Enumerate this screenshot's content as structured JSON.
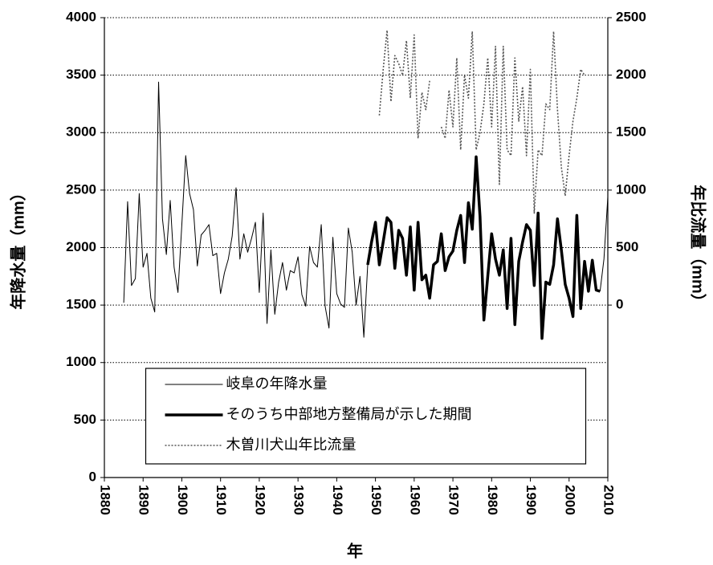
{
  "chart_data": {
    "type": "line",
    "xlabel": "年",
    "ylabel": "年降水量（mm）",
    "y2label": "年比流量（mm）",
    "xlim": [
      1880,
      2010
    ],
    "xticks": [
      1880,
      1890,
      1900,
      1910,
      1920,
      1930,
      1940,
      1950,
      1960,
      1970,
      1980,
      1990,
      2000,
      2010
    ],
    "ylim": [
      0,
      4000
    ],
    "yticks": [
      0,
      500,
      1000,
      1500,
      2000,
      2500,
      3000,
      3500,
      4000
    ],
    "y2lim": [
      -1500,
      2500
    ],
    "y2ticks": [
      0,
      500,
      1000,
      1500,
      2000,
      2500
    ],
    "grid": true,
    "legend": "lower center",
    "series": [
      {
        "name": "岐阜の年降水量",
        "color": "#000000",
        "line_width": 1,
        "dashed": false,
        "x": [
          1885,
          1886,
          1887,
          1888,
          1889,
          1890,
          1891,
          1892,
          1893,
          1894,
          1895,
          1896,
          1897,
          1898,
          1899,
          1900,
          1901,
          1902,
          1903,
          1904,
          1905,
          1906,
          1907,
          1908,
          1909,
          1910,
          1911,
          1912,
          1913,
          1914,
          1915,
          1916,
          1917,
          1918,
          1919,
          1920,
          1921,
          1922,
          1923,
          1924,
          1925,
          1926,
          1927,
          1928,
          1929,
          1930,
          1931,
          1932,
          1933,
          1934,
          1935,
          1936,
          1937,
          1938,
          1939,
          1940,
          1941,
          1942,
          1943,
          1944,
          1945,
          1946,
          1947,
          1948,
          1949,
          1950,
          1951,
          1952,
          1953,
          1954,
          1955,
          1956,
          1957,
          1958,
          1959,
          1960,
          1961,
          1962,
          1963,
          1964,
          1965,
          1966,
          1967,
          1968,
          1969,
          1970,
          1971,
          1972,
          1973,
          1974,
          1975,
          1976,
          1977,
          1978,
          1979,
          1980,
          1981,
          1982,
          1983,
          1984,
          1985,
          1986,
          1987,
          1988,
          1989,
          1990,
          1991,
          1992,
          1993,
          1994,
          1995,
          1996,
          1997,
          1998,
          1999,
          2000,
          2001,
          2002,
          2003,
          2004,
          2005,
          2006,
          2007,
          2008,
          2009,
          2010
        ],
        "values": [
          1520,
          2400,
          1670,
          1730,
          2470,
          1830,
          1950,
          1560,
          1440,
          3440,
          2250,
          1940,
          2410,
          1830,
          1610,
          2200,
          2800,
          2470,
          2330,
          1840,
          2110,
          2150,
          2200,
          1930,
          1950,
          1600,
          1780,
          1900,
          2100,
          2520,
          1900,
          2120,
          1960,
          2080,
          2220,
          1610,
          2300,
          1340,
          1980,
          1420,
          1700,
          1870,
          1630,
          1800,
          1780,
          1920,
          1590,
          1490,
          2010,
          1870,
          1830,
          2200,
          1490,
          1300,
          2090,
          1600,
          1510,
          1480,
          2170,
          1960,
          1500,
          1750,
          1220,
          1850,
          null,
          null,
          null,
          null,
          null,
          null,
          null,
          null,
          null,
          null,
          null,
          null,
          null,
          null,
          null,
          null,
          null,
          null,
          null,
          null,
          null,
          null,
          null,
          null,
          null,
          null,
          null,
          null,
          null,
          null,
          null,
          null,
          null,
          null,
          null,
          null,
          null,
          null,
          null,
          null,
          null,
          null,
          null,
          null,
          null,
          null,
          null,
          null,
          null,
          null,
          null,
          null,
          null,
          null,
          null,
          null,
          null,
          null,
          null,
          1620,
          1900,
          2440
        ]
      },
      {
        "name": "そのうち中部地方整備局が示した期間",
        "color": "#000000",
        "line_width": 3.5,
        "dashed": false,
        "x": [
          1948,
          1949,
          1950,
          1951,
          1952,
          1953,
          1954,
          1955,
          1956,
          1957,
          1958,
          1959,
          1960,
          1961,
          1962,
          1963,
          1964,
          1965,
          1966,
          1967,
          1968,
          1969,
          1970,
          1971,
          1972,
          1973,
          1974,
          1975,
          1976,
          1977,
          1978,
          1979,
          1980,
          1981,
          1982,
          1983,
          1984,
          1985,
          1986,
          1987,
          1988,
          1989,
          1990,
          1991,
          1992,
          1993,
          1994,
          1995,
          1996,
          1997,
          1998,
          1999,
          2000,
          2001,
          2002,
          2003,
          2004,
          2005,
          2006,
          2007,
          2008
        ],
        "values": [
          1850,
          2050,
          2220,
          1850,
          2050,
          2260,
          2220,
          1820,
          2150,
          2080,
          1760,
          2180,
          1630,
          2220,
          1720,
          1760,
          1560,
          1850,
          1880,
          2120,
          1800,
          1920,
          1970,
          2150,
          2280,
          1870,
          2390,
          2160,
          2790,
          2270,
          1370,
          1750,
          2120,
          1900,
          1760,
          1980,
          1470,
          2080,
          1330,
          1880,
          2050,
          2200,
          2150,
          1670,
          2300,
          1210,
          1700,
          1680,
          1850,
          2250,
          1980,
          1680,
          1560,
          1400,
          2280,
          1470,
          1880,
          1620,
          1890,
          1630,
          1620
        ]
      },
      {
        "name": "木曽川犬山年比流量",
        "color": "#555555",
        "line_width": 1.6,
        "dashed": true,
        "axis": "y2",
        "x": [
          1951,
          1952,
          1953,
          1954,
          1955,
          1956,
          1957,
          1958,
          1959,
          1960,
          1961,
          1962,
          1963,
          1964,
          1965,
          1966,
          1967,
          1968,
          1969,
          1970,
          1971,
          1972,
          1973,
          1974,
          1975,
          1976,
          1977,
          1978,
          1979,
          1980,
          1981,
          1982,
          1983,
          1984,
          1985,
          1986,
          1987,
          1988,
          1989,
          1990,
          1991,
          1992,
          1993,
          1994,
          1995,
          1996,
          1997,
          1998,
          1999,
          2000,
          2001,
          2002,
          2003,
          2004
        ],
        "values": [
          1650,
          2050,
          2390,
          1770,
          2170,
          2100,
          2000,
          2300,
          1800,
          2350,
          1450,
          1850,
          1700,
          1950,
          null,
          null,
          1550,
          1450,
          1870,
          1550,
          2150,
          1350,
          2000,
          1800,
          2380,
          1350,
          1500,
          1750,
          2150,
          1550,
          2250,
          1050,
          2250,
          1350,
          1300,
          2150,
          1600,
          1900,
          1300,
          2050,
          800,
          1350,
          1300,
          1750,
          1700,
          2380,
          1700,
          1200,
          950,
          1300,
          1600,
          1800,
          2050,
          2000
        ]
      }
    ]
  }
}
